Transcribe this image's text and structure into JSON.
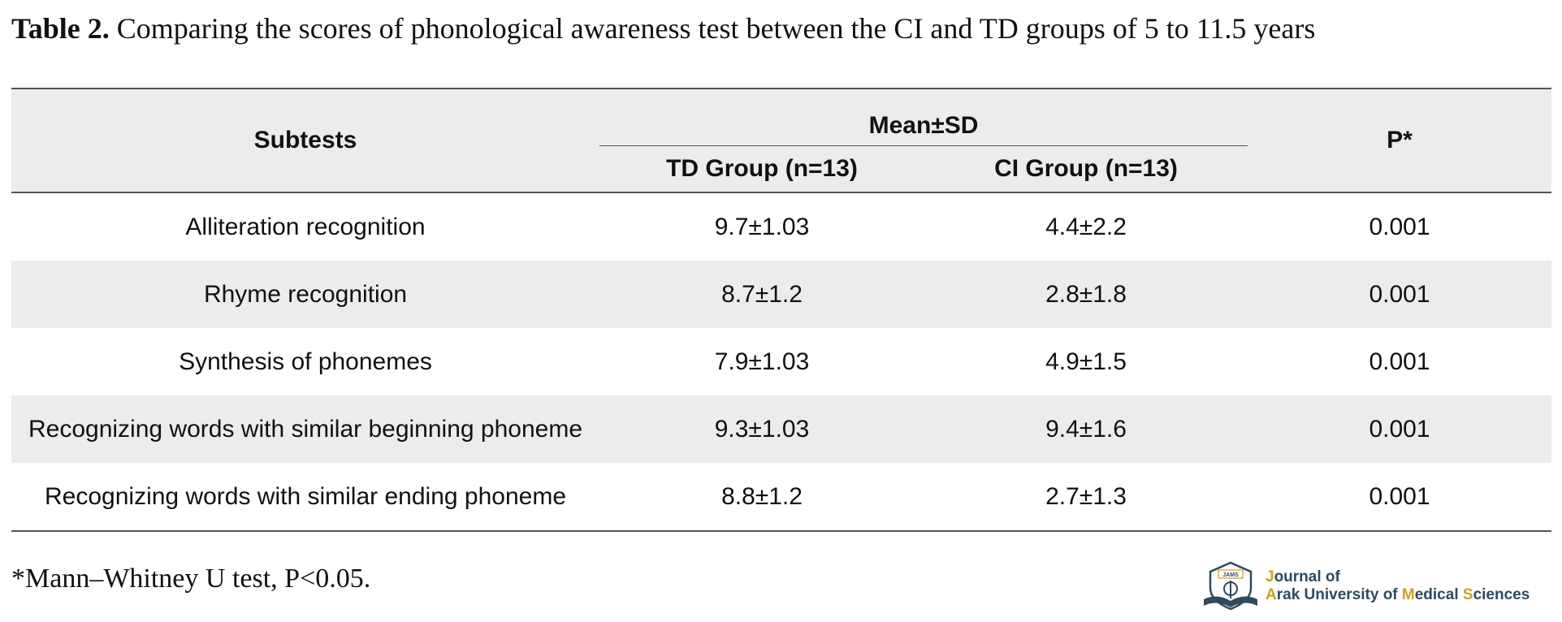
{
  "caption": {
    "label": "Table 2.",
    "text": "Comparing the scores of phonological awareness test between the CI and TD groups of 5 to 11.5 years"
  },
  "table": {
    "headers": {
      "subtests": "Subtests",
      "group_header": "Mean±SD",
      "td": "TD Group (n=13)",
      "ci": "CI Group (n=13)",
      "p": "P*"
    },
    "rows": [
      {
        "subtest": "Alliteration recognition",
        "td": "9.7±1.03",
        "ci": "4.4±2.2",
        "p": "0.001"
      },
      {
        "subtest": "Rhyme recognition",
        "td": "8.7±1.2",
        "ci": "2.8±1.8",
        "p": "0.001"
      },
      {
        "subtest": "Synthesis of phonemes",
        "td": "7.9±1.03",
        "ci": "4.9±1.5",
        "p": "0.001"
      },
      {
        "subtest": "Recognizing words with similar beginning phoneme",
        "td": "9.3±1.03",
        "ci": "9.4±1.6",
        "p": "0.001"
      },
      {
        "subtest": "Recognizing words with similar ending phoneme",
        "td": "8.8±1.2",
        "ci": "2.7±1.3",
        "p": "0.001"
      }
    ]
  },
  "footnote": "*Mann–Whitney U test, P<0.05.",
  "logo": {
    "emblem_text": "JAMS",
    "line1": [
      "J",
      "ournal of"
    ],
    "line2": [
      "A",
      "rak University of ",
      "M",
      "edical ",
      "S",
      "ciences"
    ],
    "primary_color": "#2e4a5e",
    "accent_color": "#c9a227"
  }
}
